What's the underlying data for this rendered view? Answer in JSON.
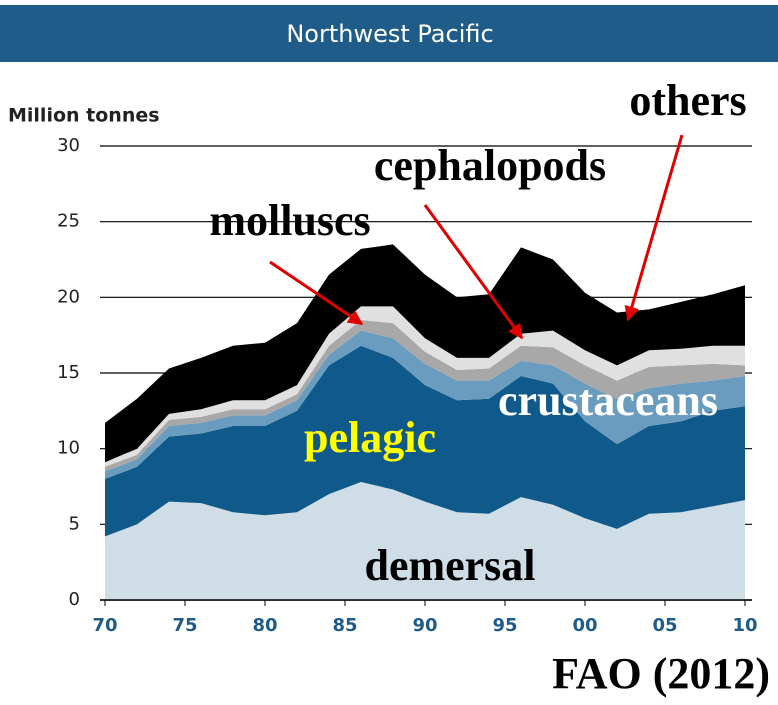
{
  "chart_data": {
    "type": "stacked_area",
    "title": "Northwest Pacific",
    "y_label": "Million tonnes",
    "source": "FAO (2012)",
    "x": [
      1970,
      1972,
      1974,
      1976,
      1978,
      1980,
      1982,
      1984,
      1986,
      1988,
      1990,
      1992,
      1994,
      1996,
      1998,
      2000,
      2002,
      2004,
      2006,
      2008,
      2010
    ],
    "series": [
      {
        "name": "demersal",
        "color": "#cfdde6",
        "label_color": "#000000",
        "values": [
          4.2,
          5.0,
          6.5,
          6.4,
          5.8,
          5.6,
          5.8,
          7.0,
          7.8,
          7.3,
          6.5,
          5.8,
          5.7,
          6.8,
          6.3,
          5.4,
          4.7,
          5.7,
          5.8,
          6.2,
          6.6
        ]
      },
      {
        "name": "pelagic",
        "color": "#0f5a8a",
        "label_color": "#ffff00",
        "values": [
          3.8,
          3.8,
          4.3,
          4.6,
          5.7,
          5.9,
          6.7,
          8.5,
          9.0,
          8.7,
          7.7,
          7.4,
          7.6,
          8.0,
          8.0,
          6.4,
          5.6,
          5.8,
          6.0,
          6.3,
          6.2
        ]
      },
      {
        "name": "crustaceans",
        "color": "#6a9cbf",
        "label_color": "#ffffff",
        "values": [
          0.5,
          0.5,
          0.7,
          0.7,
          0.7,
          0.7,
          0.7,
          0.7,
          1.0,
          1.3,
          1.4,
          1.3,
          1.2,
          1.0,
          1.2,
          2.5,
          3.0,
          2.5,
          2.5,
          2.0,
          2.0
        ]
      },
      {
        "name": "cephalopods",
        "color": "#a8a8a8",
        "label_color": "#000000",
        "values": [
          0.3,
          0.3,
          0.4,
          0.4,
          0.4,
          0.4,
          0.4,
          0.6,
          0.7,
          1.0,
          0.8,
          0.7,
          0.8,
          1.0,
          1.2,
          1.2,
          1.2,
          1.4,
          1.2,
          1.1,
          0.7
        ]
      },
      {
        "name": "molluscs",
        "color": "#e0e0e0",
        "label_color": "#000000",
        "values": [
          0.3,
          0.4,
          0.4,
          0.5,
          0.6,
          0.6,
          0.6,
          0.8,
          0.9,
          1.1,
          0.9,
          0.8,
          0.7,
          0.8,
          1.1,
          1.0,
          1.0,
          1.1,
          1.1,
          1.2,
          1.3
        ]
      },
      {
        "name": "others",
        "color": "#000000",
        "label_color": "#000000",
        "values": [
          2.6,
          3.3,
          3.0,
          3.4,
          3.6,
          3.8,
          4.1,
          3.9,
          3.8,
          4.1,
          4.2,
          4.0,
          4.2,
          5.7,
          4.7,
          3.8,
          3.5,
          2.7,
          3.1,
          3.4,
          4.0
        ]
      }
    ],
    "xlim": [
      1970,
      2010
    ],
    "xticks": [
      {
        "value": 1970,
        "label": "70"
      },
      {
        "value": 1975,
        "label": "75"
      },
      {
        "value": 1980,
        "label": "80"
      },
      {
        "value": 1985,
        "label": "85"
      },
      {
        "value": 1990,
        "label": "90"
      },
      {
        "value": 1995,
        "label": "95"
      },
      {
        "value": 2000,
        "label": "00"
      },
      {
        "value": 2005,
        "label": "05"
      },
      {
        "value": 2010,
        "label": "10"
      }
    ],
    "ylim": [
      0,
      30
    ],
    "yticks": [
      0,
      5,
      10,
      15,
      20,
      25,
      30
    ],
    "grid": true
  }
}
